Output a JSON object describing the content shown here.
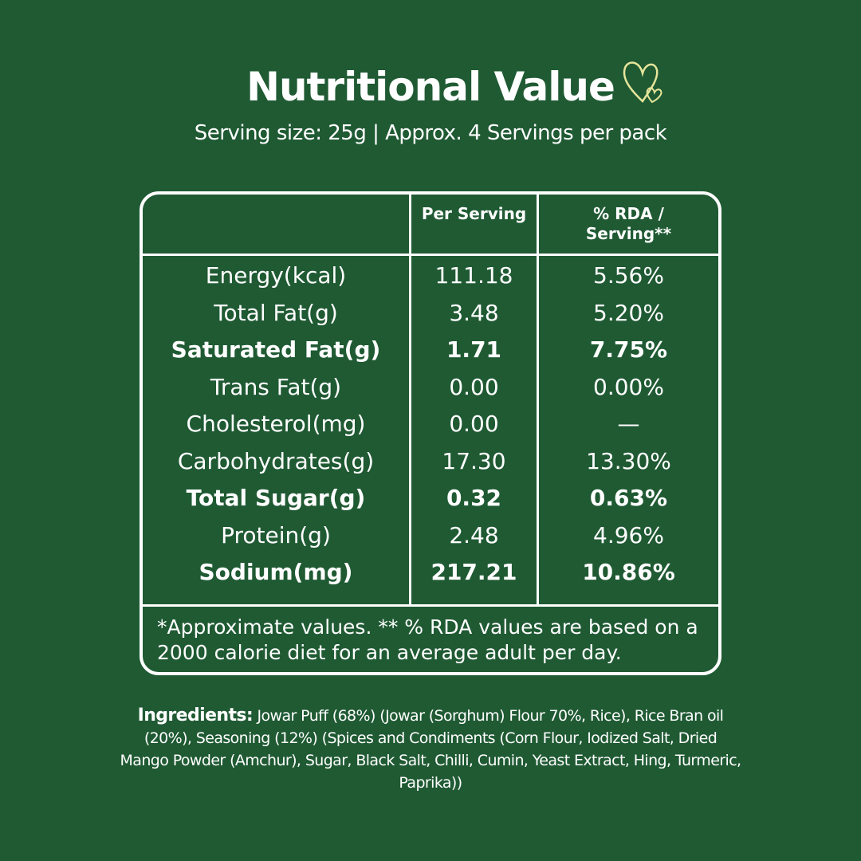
{
  "header": {
    "title": "Nutritional Value",
    "subtitle": "Serving size: 25g | Approx. 4 Servings per pack"
  },
  "table": {
    "columns": [
      "",
      "Per Serving",
      "% RDA / Serving**"
    ],
    "rows": [
      {
        "label": "Energy(kcal)",
        "per_serving": "111.18",
        "rda": "5.56%",
        "bold": false
      },
      {
        "label": "Total Fat(g)",
        "per_serving": "3.48",
        "rda": "5.20%",
        "bold": false
      },
      {
        "label": "Saturated Fat(g)",
        "per_serving": "1.71",
        "rda": "7.75%",
        "bold": true
      },
      {
        "label": "Trans Fat(g)",
        "per_serving": "0.00",
        "rda": "0.00%",
        "bold": false
      },
      {
        "label": "Cholesterol(mg)",
        "per_serving": "0.00",
        "rda": "—",
        "bold": false
      },
      {
        "label": "Carbohydrates(g)",
        "per_serving": "17.30",
        "rda": "13.30%",
        "bold": false
      },
      {
        "label": "Total Sugar(g)",
        "per_serving": "0.32",
        "rda": "0.63%",
        "bold": true
      },
      {
        "label": "Protein(g)",
        "per_serving": "2.48",
        "rda": "4.96%",
        "bold": false
      },
      {
        "label": "Sodium(mg)",
        "per_serving": "217.21",
        "rda": "10.86%",
        "bold": true
      }
    ],
    "footnote": "*Approximate values. ** % RDA values are based on a 2000 calorie diet for an average adult per day."
  },
  "ingredients": {
    "label": "Ingredients:",
    "text": "Jowar Puff (68%)  (Jowar (Sorghum) Flour 70%, Rice), Rice Bran oil (20%), Seasoning (12%) (Spices and Condiments (Corn Flour, Iodized Salt, Dried Mango Powder (Amchur), Sugar, Black Salt, Chilli, Cumin, Yeast Extract, Hing, Turmeric, Paprika))"
  }
}
